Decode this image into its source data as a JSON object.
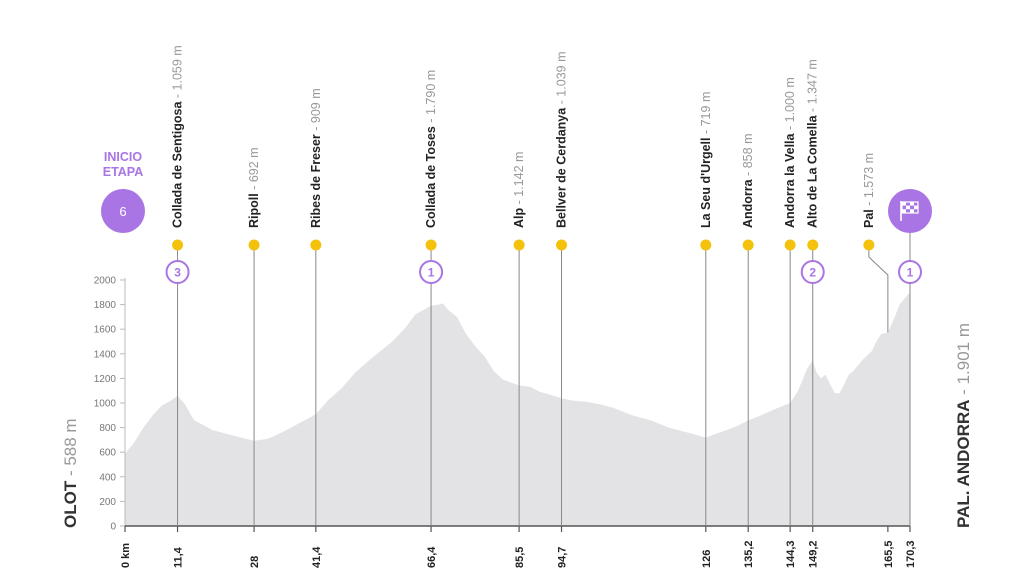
{
  "start": {
    "badge_line1": "INICIO",
    "badge_line2": "ETAPA",
    "city": "OLOT",
    "elevation": "588 m"
  },
  "finish": {
    "city": "PAL. ANDORRA",
    "elevation": "1.901 m"
  },
  "colors": {
    "profile_fill": "#e3e3e6",
    "purple": "#a974e4",
    "marker": "#f4c20d",
    "axis": "#555555"
  },
  "chart_data": {
    "type": "area",
    "xlabel": "",
    "ylabel": "",
    "ylim": [
      0,
      2000
    ],
    "yticks": [
      0,
      200,
      400,
      600,
      800,
      1000,
      1200,
      1400,
      1600,
      1800,
      2000
    ],
    "xlim": [
      0,
      170.3
    ],
    "x_ticks": [
      "0 km",
      "11,4",
      "28",
      "41,4",
      "66,4",
      "85,5",
      "94,7",
      "126",
      "135,2",
      "144,3",
      "149,2",
      "165,5",
      "170,3"
    ],
    "x_tick_values": [
      0,
      11.4,
      28,
      41.4,
      66.4,
      85.5,
      94.7,
      126,
      135.2,
      144.3,
      149.2,
      165.5,
      170.3
    ],
    "profile": [
      [
        0,
        588
      ],
      [
        2,
        680
      ],
      [
        4,
        800
      ],
      [
        6,
        900
      ],
      [
        8,
        980
      ],
      [
        10,
        1020
      ],
      [
        11.4,
        1059
      ],
      [
        13,
        990
      ],
      [
        15,
        860
      ],
      [
        17,
        820
      ],
      [
        19,
        780
      ],
      [
        21,
        760
      ],
      [
        23,
        740
      ],
      [
        25,
        720
      ],
      [
        28,
        692
      ],
      [
        31,
        710
      ],
      [
        34,
        760
      ],
      [
        37,
        820
      ],
      [
        40,
        880
      ],
      [
        41.4,
        909
      ],
      [
        44,
        1020
      ],
      [
        47,
        1120
      ],
      [
        50,
        1250
      ],
      [
        54,
        1380
      ],
      [
        58,
        1500
      ],
      [
        61,
        1620
      ],
      [
        63,
        1720
      ],
      [
        66.4,
        1790
      ],
      [
        68,
        1800
      ],
      [
        69,
        1810
      ],
      [
        70,
        1760
      ],
      [
        72,
        1700
      ],
      [
        74,
        1560
      ],
      [
        76,
        1460
      ],
      [
        78,
        1380
      ],
      [
        80,
        1260
      ],
      [
        82,
        1190
      ],
      [
        85.5,
        1142
      ],
      [
        88,
        1130
      ],
      [
        90,
        1090
      ],
      [
        92,
        1070
      ],
      [
        94.7,
        1039
      ],
      [
        97,
        1020
      ],
      [
        100,
        1010
      ],
      [
        103,
        990
      ],
      [
        106,
        960
      ],
      [
        110,
        900
      ],
      [
        114,
        860
      ],
      [
        118,
        800
      ],
      [
        122,
        760
      ],
      [
        126,
        719
      ],
      [
        129,
        760
      ],
      [
        132,
        800
      ],
      [
        135.2,
        858
      ],
      [
        138,
        900
      ],
      [
        141,
        950
      ],
      [
        144.3,
        1000
      ],
      [
        146,
        1100
      ],
      [
        148,
        1280
      ],
      [
        149.2,
        1347
      ],
      [
        150,
        1250
      ],
      [
        151,
        1200
      ],
      [
        152,
        1230
      ],
      [
        153,
        1150
      ],
      [
        154,
        1080
      ],
      [
        155,
        1080
      ],
      [
        156,
        1150
      ],
      [
        157,
        1230
      ],
      [
        158,
        1260
      ],
      [
        160,
        1350
      ],
      [
        162,
        1420
      ],
      [
        163,
        1500
      ],
      [
        164,
        1560
      ],
      [
        165.5,
        1573
      ],
      [
        167,
        1700
      ],
      [
        168,
        1800
      ],
      [
        170.3,
        1901
      ]
    ],
    "points": [
      {
        "km": 11.4,
        "name": "Collada de Sentigosa",
        "alt": "1.059 m",
        "climb": "3"
      },
      {
        "km": 28,
        "name": "Ripoll",
        "alt": "692 m"
      },
      {
        "km": 41.4,
        "name": "Ribes de Freser",
        "alt": "909 m"
      },
      {
        "km": 66.4,
        "name": "Collada de Toses",
        "alt": "1.790 m",
        "climb": "1"
      },
      {
        "km": 85.5,
        "name": "Alp",
        "alt": "1.142 m"
      },
      {
        "km": 94.7,
        "name": "Bellver de Cerdanya",
        "alt": "1.039 m"
      },
      {
        "km": 126,
        "name": "La Seu d'Urgell",
        "alt": "719 m"
      },
      {
        "km": 135.2,
        "name": "Andorra",
        "alt": "858 m"
      },
      {
        "km": 144.3,
        "name": "Andorra la Vella",
        "alt": "1.000 m"
      },
      {
        "km": 149.2,
        "name": "Alto de La Comella",
        "alt": "1.347 m",
        "climb": "2"
      },
      {
        "km": 165.5,
        "name": "Pal",
        "alt": "1.573 m"
      },
      {
        "km": 170.3,
        "name": "",
        "alt": "",
        "climb": "1"
      }
    ]
  }
}
